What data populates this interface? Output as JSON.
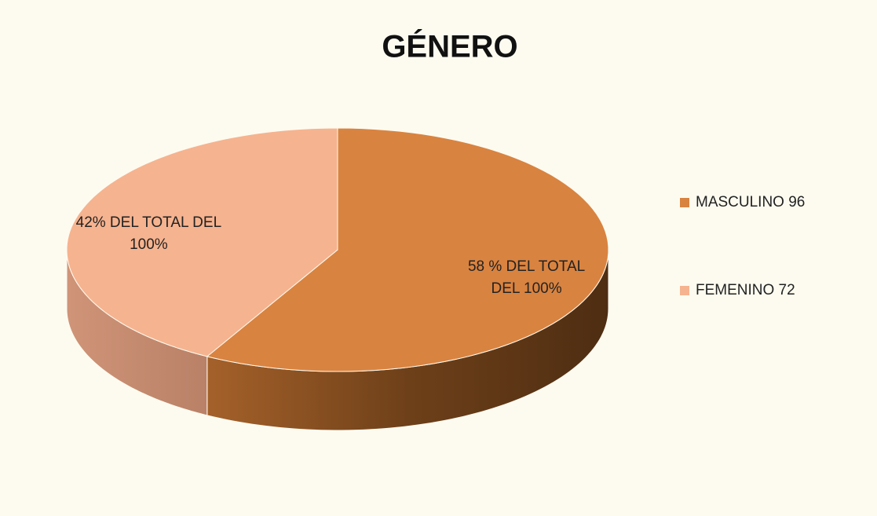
{
  "chart_data": {
    "type": "pie",
    "title": "GÉNERO",
    "categories": [
      "MASCULINO 96",
      "FEMENINO 72"
    ],
    "values": [
      58,
      42
    ],
    "value_labels": [
      "58 % DEL TOTAL DEL 100%",
      "42%  DEL TOTAL DEL 100%"
    ],
    "colors": [
      "#d98340",
      "#f6b38f"
    ],
    "legend": "right"
  }
}
